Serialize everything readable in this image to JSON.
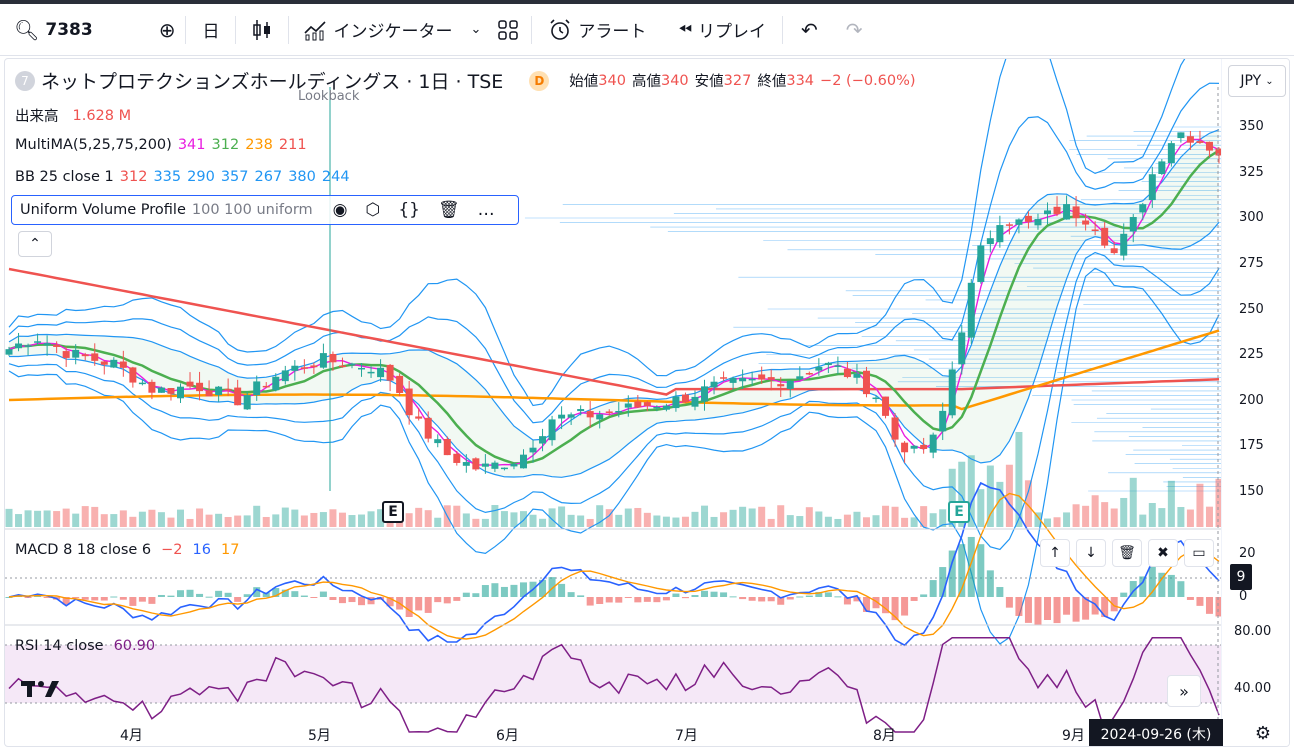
{
  "toolbar": {
    "symbol": "7383",
    "interval": "日",
    "indicators_label": "インジケーター",
    "alert_label": "アラート",
    "replay_label": "リプレイ",
    "icons": [
      "search-icon",
      "plus-circle-icon",
      "candles-icon",
      "indicators-icon",
      "chevron-down-icon",
      "layout-grid-icon",
      "alarm-clock-icon",
      "replay-icon",
      "undo-icon",
      "redo-icon"
    ]
  },
  "symbol_legend": {
    "badge": "7",
    "name": "ネットプロテクションズホールディングス · 1日 · TSE",
    "d_badge": "D",
    "open_label": "始値",
    "open": "340",
    "high_label": "高値",
    "high": "340",
    "low_label": "安値",
    "low": "327",
    "close_label": "終値",
    "close": "334",
    "change": "−2 (−0.60%)"
  },
  "volume_legend": {
    "label": "出来高",
    "value": "1.628 M"
  },
  "ma_legend": {
    "label": "MultiMA(5,25,75,200)",
    "v1": "341",
    "v2": "312",
    "v3": "238",
    "v4": "211"
  },
  "bb_legend": {
    "label": "BB 25 close 1",
    "v1": "312",
    "v2": "335",
    "v3": "290",
    "v4": "357",
    "v5": "267",
    "v6": "380",
    "v7": "244"
  },
  "vp_legend": {
    "label": "Uniform Volume Profile",
    "params": "100 100 uniform"
  },
  "lookback_label": "Lookback",
  "currency": "JPY",
  "price_ticks": [
    "350",
    "325",
    "300",
    "275",
    "250",
    "225",
    "200",
    "175",
    "150"
  ],
  "macd_legend": {
    "label": "MACD 8 18 close 6",
    "v1": "−2",
    "v2": "16",
    "v3": "17"
  },
  "macd_ticks": [
    "20",
    "0"
  ],
  "macd_value_badge": "9",
  "rsi_legend": {
    "label": "RSI 14 close",
    "value": "60.90"
  },
  "rsi_ticks": [
    "80.00",
    "40.00"
  ],
  "time_labels": [
    "4月",
    "5月",
    "6月",
    "7月",
    "8月",
    "9月"
  ],
  "crosshair_date": "2024-09-26 (木)",
  "earnings_marker": "E",
  "colors": {
    "up": "#26a69a",
    "down": "#ef5350",
    "ma5": "#e91ee0",
    "ma25": "#4caf50",
    "ma75": "#ff9800",
    "ma200": "#ef5350",
    "bb": "#2196f3",
    "macd": "#2962ff",
    "signal": "#ff9800",
    "rsi": "#7e1f86"
  }
}
